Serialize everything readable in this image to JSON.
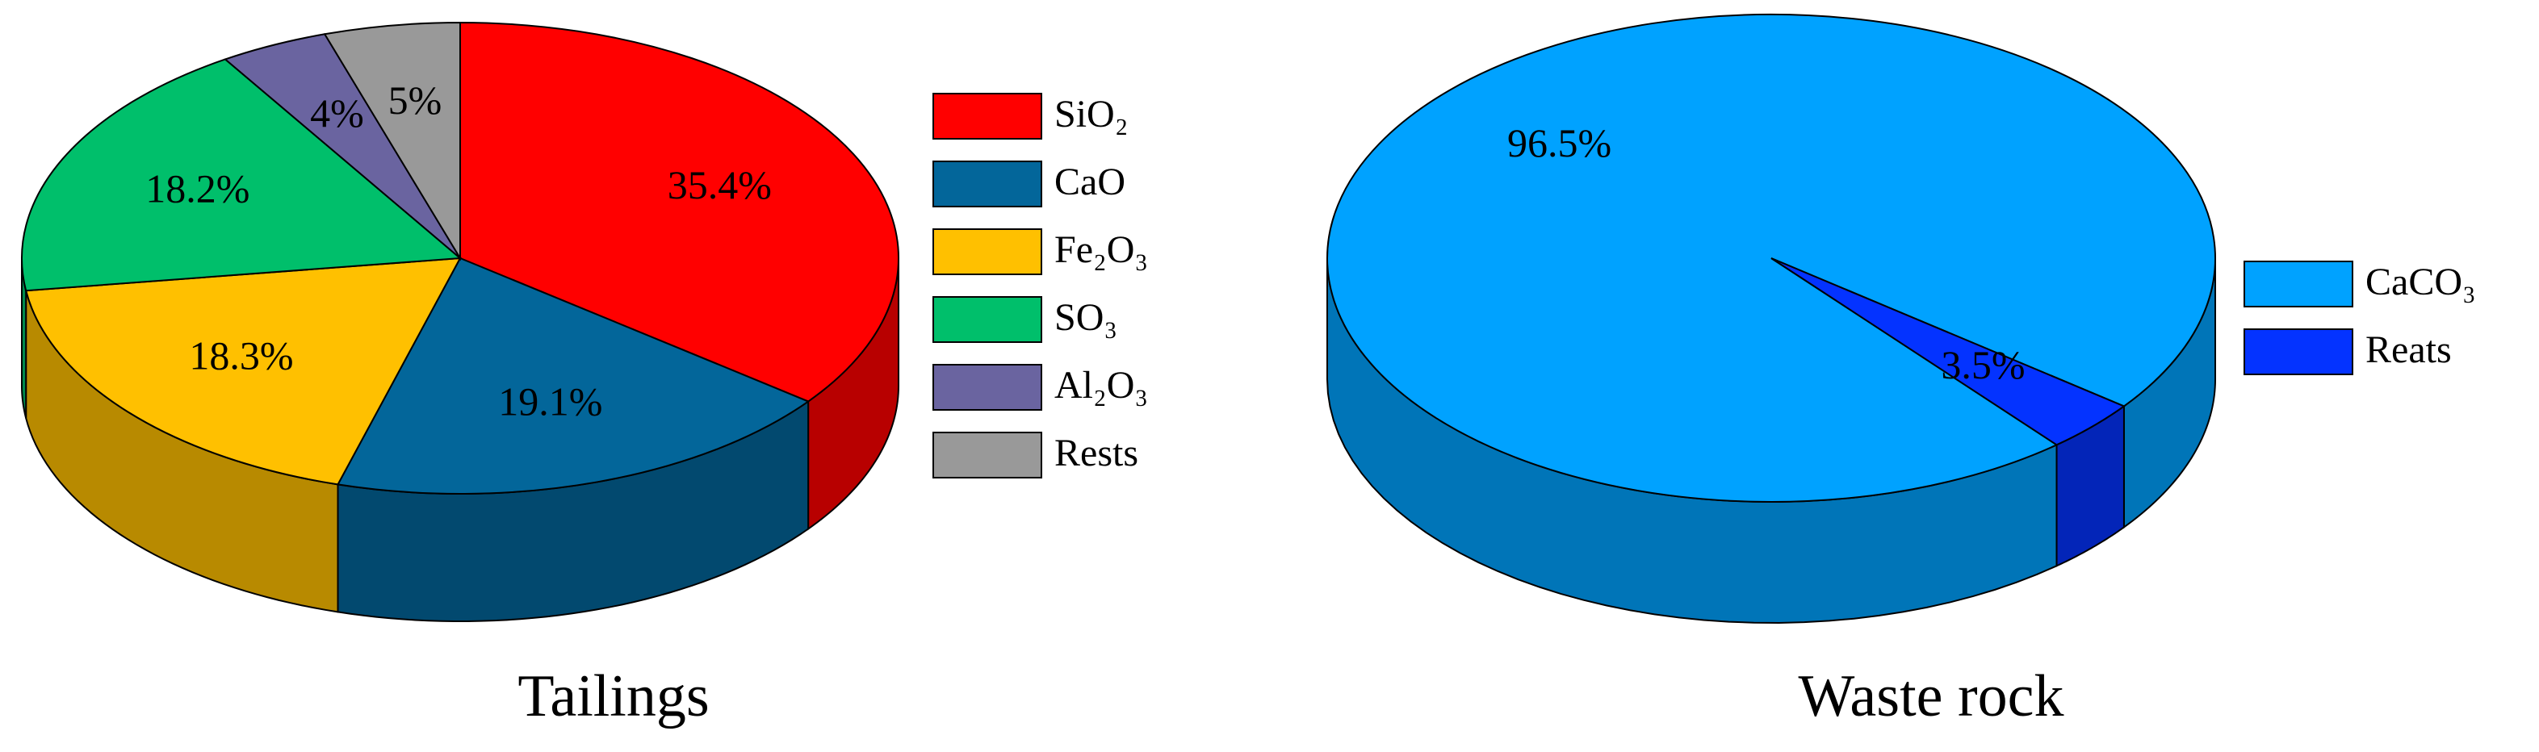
{
  "chart_data": [
    {
      "type": "pie",
      "title": "Tailings",
      "categories": [
        "SiO₂",
        "CaO",
        "Fe₂O₃",
        "SO₃",
        "Al₂O₃",
        "Rests"
      ],
      "values": [
        35.4,
        19.1,
        18.3,
        18.2,
        4,
        5
      ],
      "value_labels": [
        "35.4%",
        "19.1%",
        "18.3%",
        "18.2%",
        "4%",
        "5%"
      ],
      "colors": [
        "#ff0000",
        "#03669a",
        "#ffc000",
        "#00bf6b",
        "#6a64a0",
        "#999999"
      ]
    },
    {
      "type": "pie",
      "title": "Waste rock",
      "categories": [
        "CaCO₃",
        "Reats"
      ],
      "values": [
        96.5,
        3.5
      ],
      "value_labels": [
        "96.5%",
        "3.5%"
      ],
      "colors": [
        "#00a2ff",
        "#0433ff"
      ]
    }
  ]
}
